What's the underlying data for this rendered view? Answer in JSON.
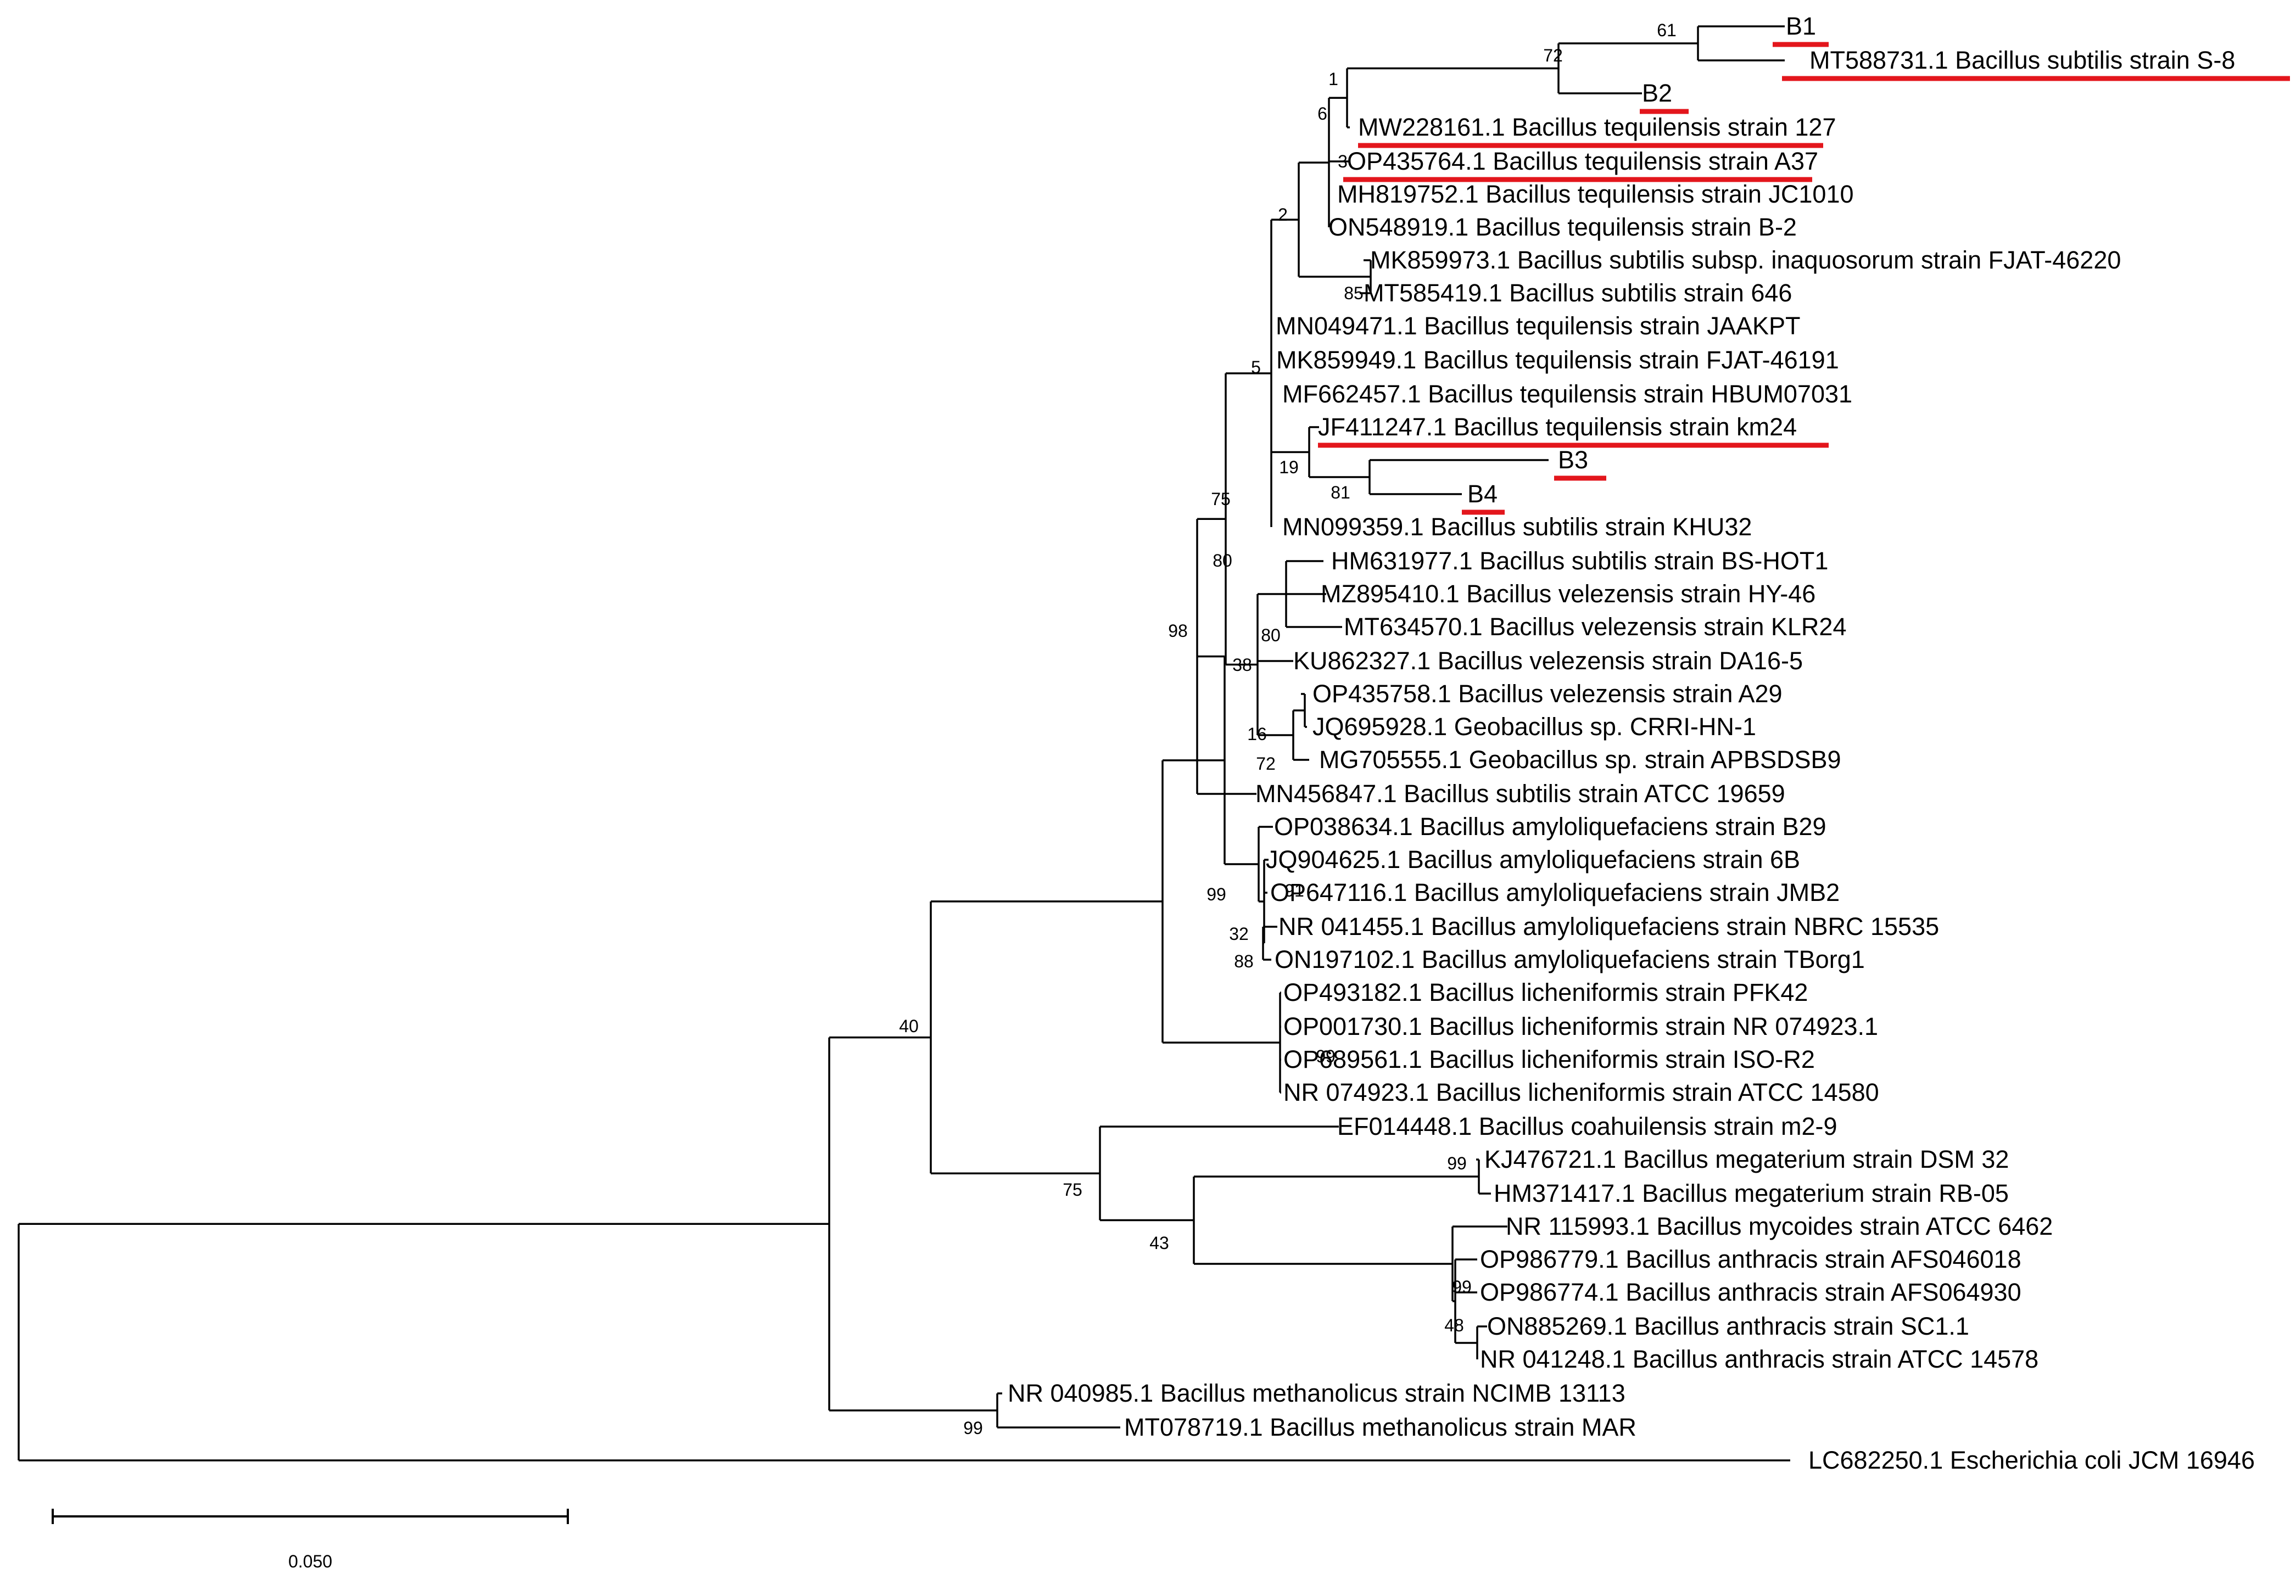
{
  "diagram": {
    "type": "phylogenetic-tree",
    "colors": {
      "branch": "#000000",
      "highlight": "#e3161c",
      "text": "#000000"
    },
    "scale_bar_label": "0.050",
    "leaves": [
      {
        "label": "B1",
        "highlighted": true
      },
      {
        "label": "MT588731.1 Bacillus subtilis strain S-8",
        "highlighted": true
      },
      {
        "label": "B2",
        "highlighted": true
      },
      {
        "label": "MW228161.1 Bacillus tequilensis strain 127",
        "highlighted": true
      },
      {
        "label": "OP435764.1 Bacillus tequilensis strain A37",
        "highlighted": true
      },
      {
        "label": "MH819752.1 Bacillus tequilensis strain JC1010",
        "highlighted": false
      },
      {
        "label": "ON548919.1 Bacillus tequilensis strain B-2",
        "highlighted": false
      },
      {
        "label": "MK859973.1 Bacillus subtilis subsp. inaquosorum strain FJAT-46220",
        "highlighted": false
      },
      {
        "label": "MT585419.1 Bacillus subtilis strain 646",
        "highlighted": false
      },
      {
        "label": "MN049471.1 Bacillus tequilensis strain JAAKPT",
        "highlighted": false
      },
      {
        "label": "MK859949.1 Bacillus tequilensis strain FJAT-46191",
        "highlighted": false
      },
      {
        "label": "MF662457.1 Bacillus tequilensis strain HBUM07031",
        "highlighted": false
      },
      {
        "label": "JF411247.1 Bacillus tequilensis strain km24",
        "highlighted": true
      },
      {
        "label": "B3",
        "highlighted": true
      },
      {
        "label": "B4",
        "highlighted": true
      },
      {
        "label": "MN099359.1 Bacillus subtilis strain KHU32",
        "highlighted": false
      },
      {
        "label": "HM631977.1 Bacillus subtilis strain BS-HOT1",
        "highlighted": false
      },
      {
        "label": "MZ895410.1 Bacillus velezensis strain HY-46",
        "highlighted": false
      },
      {
        "label": "MT634570.1 Bacillus velezensis strain KLR24",
        "highlighted": false
      },
      {
        "label": "KU862327.1 Bacillus velezensis strain DA16-5",
        "highlighted": false
      },
      {
        "label": "OP435758.1 Bacillus velezensis strain A29",
        "highlighted": false
      },
      {
        "label": "JQ695928.1 Geobacillus sp. CRRI-HN-1",
        "highlighted": false
      },
      {
        "label": "MG705555.1 Geobacillus sp. strain APBSDSB9",
        "highlighted": false
      },
      {
        "label": "MN456847.1 Bacillus subtilis strain ATCC 19659",
        "highlighted": false
      },
      {
        "label": "OP038634.1 Bacillus amyloliquefaciens strain B29",
        "highlighted": false
      },
      {
        "label": "JQ904625.1 Bacillus amyloliquefaciens strain 6B",
        "highlighted": false
      },
      {
        "label": "OP647116.1 Bacillus amyloliquefaciens strain JMB2",
        "highlighted": false
      },
      {
        "label": "NR 041455.1 Bacillus amyloliquefaciens strain NBRC 15535",
        "highlighted": false
      },
      {
        "label": "ON197102.1 Bacillus amyloliquefaciens strain TBorg1",
        "highlighted": false
      },
      {
        "label": "OP493182.1 Bacillus licheniformis strain PFK42",
        "highlighted": false
      },
      {
        "label": "OP001730.1 Bacillus licheniformis strain NR 074923.1",
        "highlighted": false
      },
      {
        "label": "OP689561.1 Bacillus licheniformis strain ISO-R2",
        "highlighted": false
      },
      {
        "label": "NR 074923.1 Bacillus licheniformis strain ATCC 14580",
        "highlighted": false
      },
      {
        "label": "EF014448.1 Bacillus coahuilensis strain m2-9",
        "highlighted": false
      },
      {
        "label": "KJ476721.1 Bacillus megaterium strain DSM 32",
        "highlighted": false
      },
      {
        "label": "HM371417.1 Bacillus megaterium strain RB-05",
        "highlighted": false
      },
      {
        "label": "NR 115993.1 Bacillus mycoides strain ATCC 6462",
        "highlighted": false
      },
      {
        "label": "OP986779.1 Bacillus anthracis strain AFS046018",
        "highlighted": false
      },
      {
        "label": "OP986774.1 Bacillus anthracis strain AFS064930",
        "highlighted": false
      },
      {
        "label": "ON885269.1 Bacillus anthracis strain SC1.1",
        "highlighted": false
      },
      {
        "label": "NR 041248.1 Bacillus anthracis strain ATCC 14578",
        "highlighted": false
      },
      {
        "label": "NR 040985.1 Bacillus methanolicus strain NCIMB 13113",
        "highlighted": false
      },
      {
        "label": "MT078719.1 Bacillus methanolicus strain MAR",
        "highlighted": false
      },
      {
        "label": "LC682250.1 Escherichia coli JCM 16946",
        "highlighted": false
      }
    ],
    "bootstrap_values": [
      "61",
      "72",
      "1",
      "6",
      "3",
      "2",
      "85",
      "5",
      "19",
      "81",
      "75",
      "80",
      "38",
      "16",
      "72",
      "80",
      "98",
      "91",
      "32",
      "88",
      "99",
      "99",
      "40",
      "99",
      "75",
      "43",
      "99",
      "48",
      "99"
    ]
  }
}
